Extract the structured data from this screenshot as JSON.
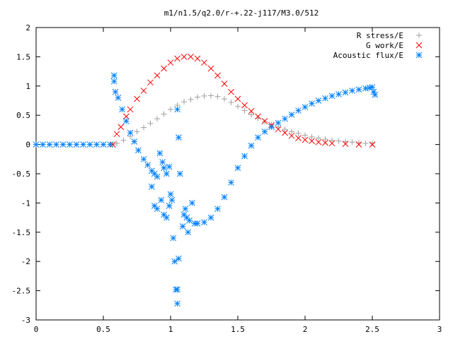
{
  "chart_data": {
    "type": "scatter",
    "title": "m1/n1.5/q2.0/r-+.22-j117/M3.0/512",
    "xlabel": "",
    "ylabel": "",
    "xlim": [
      0,
      3
    ],
    "ylim": [
      -3,
      2
    ],
    "xticks": [
      0,
      0.5,
      1,
      1.5,
      2,
      2.5,
      3
    ],
    "yticks": [
      2,
      1.5,
      1,
      0.5,
      0,
      -0.5,
      -1,
      -1.5,
      -2,
      -2.5,
      -3
    ],
    "xtick_labels": [
      "0",
      "0.5",
      "1",
      "1.5",
      "2",
      "2.5",
      "3"
    ],
    "ytick_labels": [
      "2",
      "1.5",
      "1",
      "0.5",
      "0",
      "-0.5",
      "-1",
      "-1.5",
      "-2",
      "-2.5",
      "-3"
    ],
    "grid": false,
    "legend_position": "top-right",
    "series": [
      {
        "name": "R stress/E",
        "marker": "plus",
        "color": "#a0a0a0",
        "points": [
          [
            0.57,
            0.0
          ],
          [
            0.6,
            0.02
          ],
          [
            0.65,
            0.07
          ],
          [
            0.7,
            0.14
          ],
          [
            0.75,
            0.22
          ],
          [
            0.8,
            0.29
          ],
          [
            0.85,
            0.36
          ],
          [
            0.9,
            0.44
          ],
          [
            0.95,
            0.52
          ],
          [
            1.0,
            0.6
          ],
          [
            1.05,
            0.67
          ],
          [
            1.1,
            0.73
          ],
          [
            1.15,
            0.77
          ],
          [
            1.2,
            0.81
          ],
          [
            1.25,
            0.83
          ],
          [
            1.3,
            0.835
          ],
          [
            1.35,
            0.82
          ],
          [
            1.4,
            0.78
          ],
          [
            1.45,
            0.72
          ],
          [
            1.5,
            0.65
          ],
          [
            1.55,
            0.58
          ],
          [
            1.6,
            0.51
          ],
          [
            1.65,
            0.45
          ],
          [
            1.7,
            0.39
          ],
          [
            1.75,
            0.34
          ],
          [
            1.8,
            0.3
          ],
          [
            1.85,
            0.26
          ],
          [
            1.9,
            0.22
          ],
          [
            1.95,
            0.19
          ],
          [
            2.0,
            0.16
          ],
          [
            2.05,
            0.13
          ],
          [
            2.1,
            0.11
          ],
          [
            2.15,
            0.09
          ],
          [
            2.2,
            0.07
          ],
          [
            2.25,
            0.06
          ],
          [
            2.3,
            0.05
          ],
          [
            2.35,
            0.04
          ],
          [
            2.4,
            0.03
          ],
          [
            2.45,
            0.02
          ],
          [
            2.5,
            0.02
          ]
        ]
      },
      {
        "name": "G work/E",
        "marker": "cross",
        "color": "#ff0000",
        "points": [
          [
            0.57,
            0.0
          ],
          [
            0.6,
            0.18
          ],
          [
            0.63,
            0.3
          ],
          [
            0.67,
            0.48
          ],
          [
            0.7,
            0.6
          ],
          [
            0.75,
            0.78
          ],
          [
            0.8,
            0.92
          ],
          [
            0.85,
            1.06
          ],
          [
            0.9,
            1.18
          ],
          [
            0.95,
            1.3
          ],
          [
            1.0,
            1.4
          ],
          [
            1.05,
            1.47
          ],
          [
            1.1,
            1.5
          ],
          [
            1.15,
            1.5
          ],
          [
            1.2,
            1.47
          ],
          [
            1.25,
            1.4
          ],
          [
            1.3,
            1.3
          ],
          [
            1.35,
            1.18
          ],
          [
            1.4,
            1.04
          ],
          [
            1.45,
            0.9
          ],
          [
            1.5,
            0.78
          ],
          [
            1.55,
            0.67
          ],
          [
            1.6,
            0.57
          ],
          [
            1.65,
            0.48
          ],
          [
            1.7,
            0.4
          ],
          [
            1.75,
            0.33
          ],
          [
            1.8,
            0.26
          ],
          [
            1.85,
            0.2
          ],
          [
            1.9,
            0.15
          ],
          [
            1.95,
            0.11
          ],
          [
            2.0,
            0.08
          ],
          [
            2.05,
            0.06
          ],
          [
            2.1,
            0.04
          ],
          [
            2.15,
            0.03
          ],
          [
            2.2,
            0.02
          ],
          [
            2.3,
            0.01
          ],
          [
            2.4,
            0.0
          ],
          [
            2.5,
            0.0
          ]
        ]
      },
      {
        "name": "Acoustic flux/E",
        "marker": "star",
        "color": "#0080ff",
        "points": [
          [
            0.0,
            0.0
          ],
          [
            0.05,
            0.0
          ],
          [
            0.1,
            0.0
          ],
          [
            0.15,
            0.0
          ],
          [
            0.2,
            0.0
          ],
          [
            0.25,
            0.0
          ],
          [
            0.3,
            0.0
          ],
          [
            0.35,
            0.0
          ],
          [
            0.4,
            0.0
          ],
          [
            0.45,
            0.0
          ],
          [
            0.5,
            0.0
          ],
          [
            0.55,
            0.0
          ],
          [
            0.58,
            1.18
          ],
          [
            0.58,
            1.08
          ],
          [
            0.59,
            0.9
          ],
          [
            0.61,
            0.8
          ],
          [
            0.64,
            0.6
          ],
          [
            0.67,
            0.4
          ],
          [
            0.7,
            0.2
          ],
          [
            0.73,
            0.05
          ],
          [
            0.76,
            -0.1
          ],
          [
            0.8,
            -0.25
          ],
          [
            0.83,
            -0.35
          ],
          [
            0.86,
            -0.45
          ],
          [
            0.88,
            -0.5
          ],
          [
            0.9,
            -0.55
          ],
          [
            0.92,
            -0.15
          ],
          [
            0.94,
            -0.3
          ],
          [
            0.95,
            -0.4
          ],
          [
            0.97,
            -0.5
          ],
          [
            0.99,
            -0.38
          ],
          [
            1.0,
            -0.85
          ],
          [
            1.01,
            -0.95
          ],
          [
            0.86,
            -0.72
          ],
          [
            0.88,
            -1.05
          ],
          [
            0.9,
            -1.1
          ],
          [
            0.93,
            -0.95
          ],
          [
            0.95,
            -1.2
          ],
          [
            0.97,
            -1.25
          ],
          [
            0.99,
            -1.05
          ],
          [
            1.02,
            -1.6
          ],
          [
            1.03,
            -2.0
          ],
          [
            1.04,
            -2.48
          ],
          [
            1.05,
            -2.48
          ],
          [
            1.05,
            -2.72
          ],
          [
            1.06,
            -1.95
          ],
          [
            1.05,
            0.6
          ],
          [
            1.06,
            0.12
          ],
          [
            1.07,
            -0.5
          ],
          [
            1.09,
            -1.4
          ],
          [
            1.1,
            -1.2
          ],
          [
            1.11,
            -1.1
          ],
          [
            1.12,
            -1.25
          ],
          [
            1.13,
            -1.5
          ],
          [
            1.14,
            -1.3
          ],
          [
            1.16,
            -1.0
          ],
          [
            1.18,
            -1.35
          ],
          [
            1.2,
            -1.35
          ],
          [
            1.25,
            -1.33
          ],
          [
            1.3,
            -1.25
          ],
          [
            1.35,
            -1.1
          ],
          [
            1.4,
            -0.9
          ],
          [
            1.45,
            -0.65
          ],
          [
            1.5,
            -0.4
          ],
          [
            1.55,
            -0.2
          ],
          [
            1.6,
            -0.02
          ],
          [
            1.65,
            0.12
          ],
          [
            1.7,
            0.22
          ],
          [
            1.75,
            0.3
          ],
          [
            1.8,
            0.37
          ],
          [
            1.85,
            0.44
          ],
          [
            1.9,
            0.51
          ],
          [
            1.95,
            0.58
          ],
          [
            2.0,
            0.64
          ],
          [
            2.05,
            0.7
          ],
          [
            2.1,
            0.75
          ],
          [
            2.15,
            0.79
          ],
          [
            2.2,
            0.83
          ],
          [
            2.25,
            0.86
          ],
          [
            2.3,
            0.89
          ],
          [
            2.35,
            0.92
          ],
          [
            2.4,
            0.94
          ],
          [
            2.45,
            0.96
          ],
          [
            2.48,
            0.97
          ],
          [
            2.5,
            0.98
          ],
          [
            2.51,
            0.9
          ],
          [
            2.52,
            0.85
          ]
        ]
      }
    ]
  }
}
